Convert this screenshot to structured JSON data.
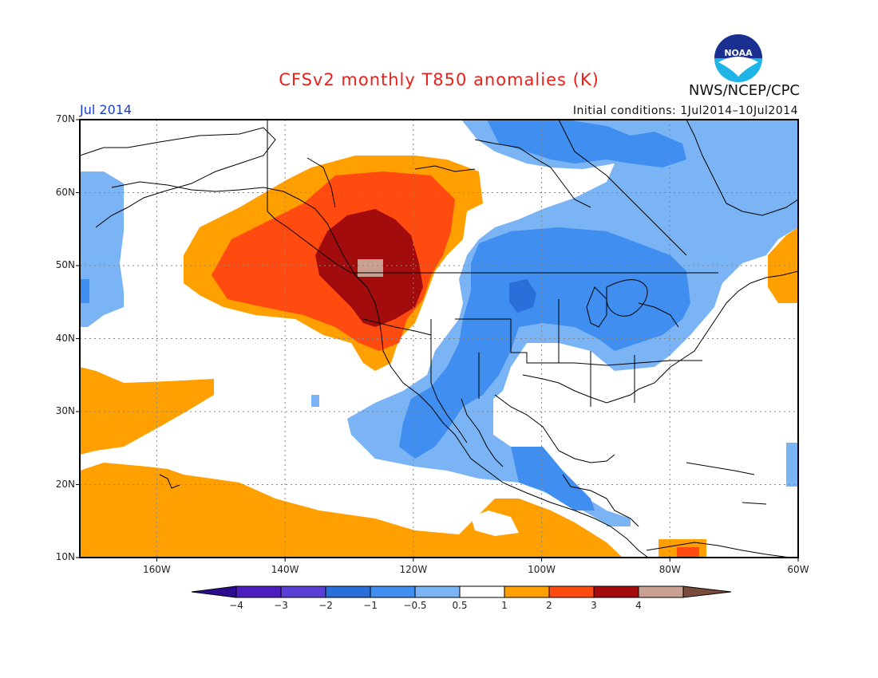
{
  "title": "CFSv2 monthly T850 anomalies (K)",
  "month_label": "Jul 2014",
  "init_label": "Initial conditions: 1Jul2014–10Jul2014",
  "agency": "NWS/NCEP/CPC",
  "logo": {
    "text": "NOAA",
    "icon": "noaa-logo"
  },
  "map": {
    "lat_range": [
      10,
      70
    ],
    "lon_range": [
      -172,
      -60
    ],
    "lat_ticks": [
      {
        "value": 70,
        "label": "70N"
      },
      {
        "value": 60,
        "label": "60N"
      },
      {
        "value": 50,
        "label": "50N"
      },
      {
        "value": 40,
        "label": "40N"
      },
      {
        "value": 30,
        "label": "30N"
      },
      {
        "value": 20,
        "label": "20N"
      },
      {
        "value": 10,
        "label": "10N"
      }
    ],
    "lon_ticks": [
      {
        "value": -160,
        "label": "160W"
      },
      {
        "value": -140,
        "label": "140W"
      },
      {
        "value": -120,
        "label": "120W"
      },
      {
        "value": -100,
        "label": "100W"
      },
      {
        "value": -80,
        "label": "80W"
      },
      {
        "value": -60,
        "label": "60W"
      }
    ],
    "grid": true
  },
  "legend": {
    "bins": [
      {
        "color": "#4b1ebf",
        "label": "−4"
      },
      {
        "color": "#5a3fd6",
        "label": "−3"
      },
      {
        "color": "#2a6ed9",
        "label": "−2"
      },
      {
        "color": "#3f8ef0",
        "label": "−1"
      },
      {
        "color": "#7ab4f5",
        "label": "−0.5"
      },
      {
        "color": "#ffffff",
        "label": "0.5"
      },
      {
        "color": "#ff9f00",
        "label": "1"
      },
      {
        "color": "#ff4a10",
        "label": "2"
      },
      {
        "color": "#a30c0c",
        "label": "3"
      },
      {
        "color": "#c9a091",
        "label": "4"
      }
    ],
    "low_end_color": "#2d0a8f",
    "high_end_color": "#7a4a3a"
  }
}
